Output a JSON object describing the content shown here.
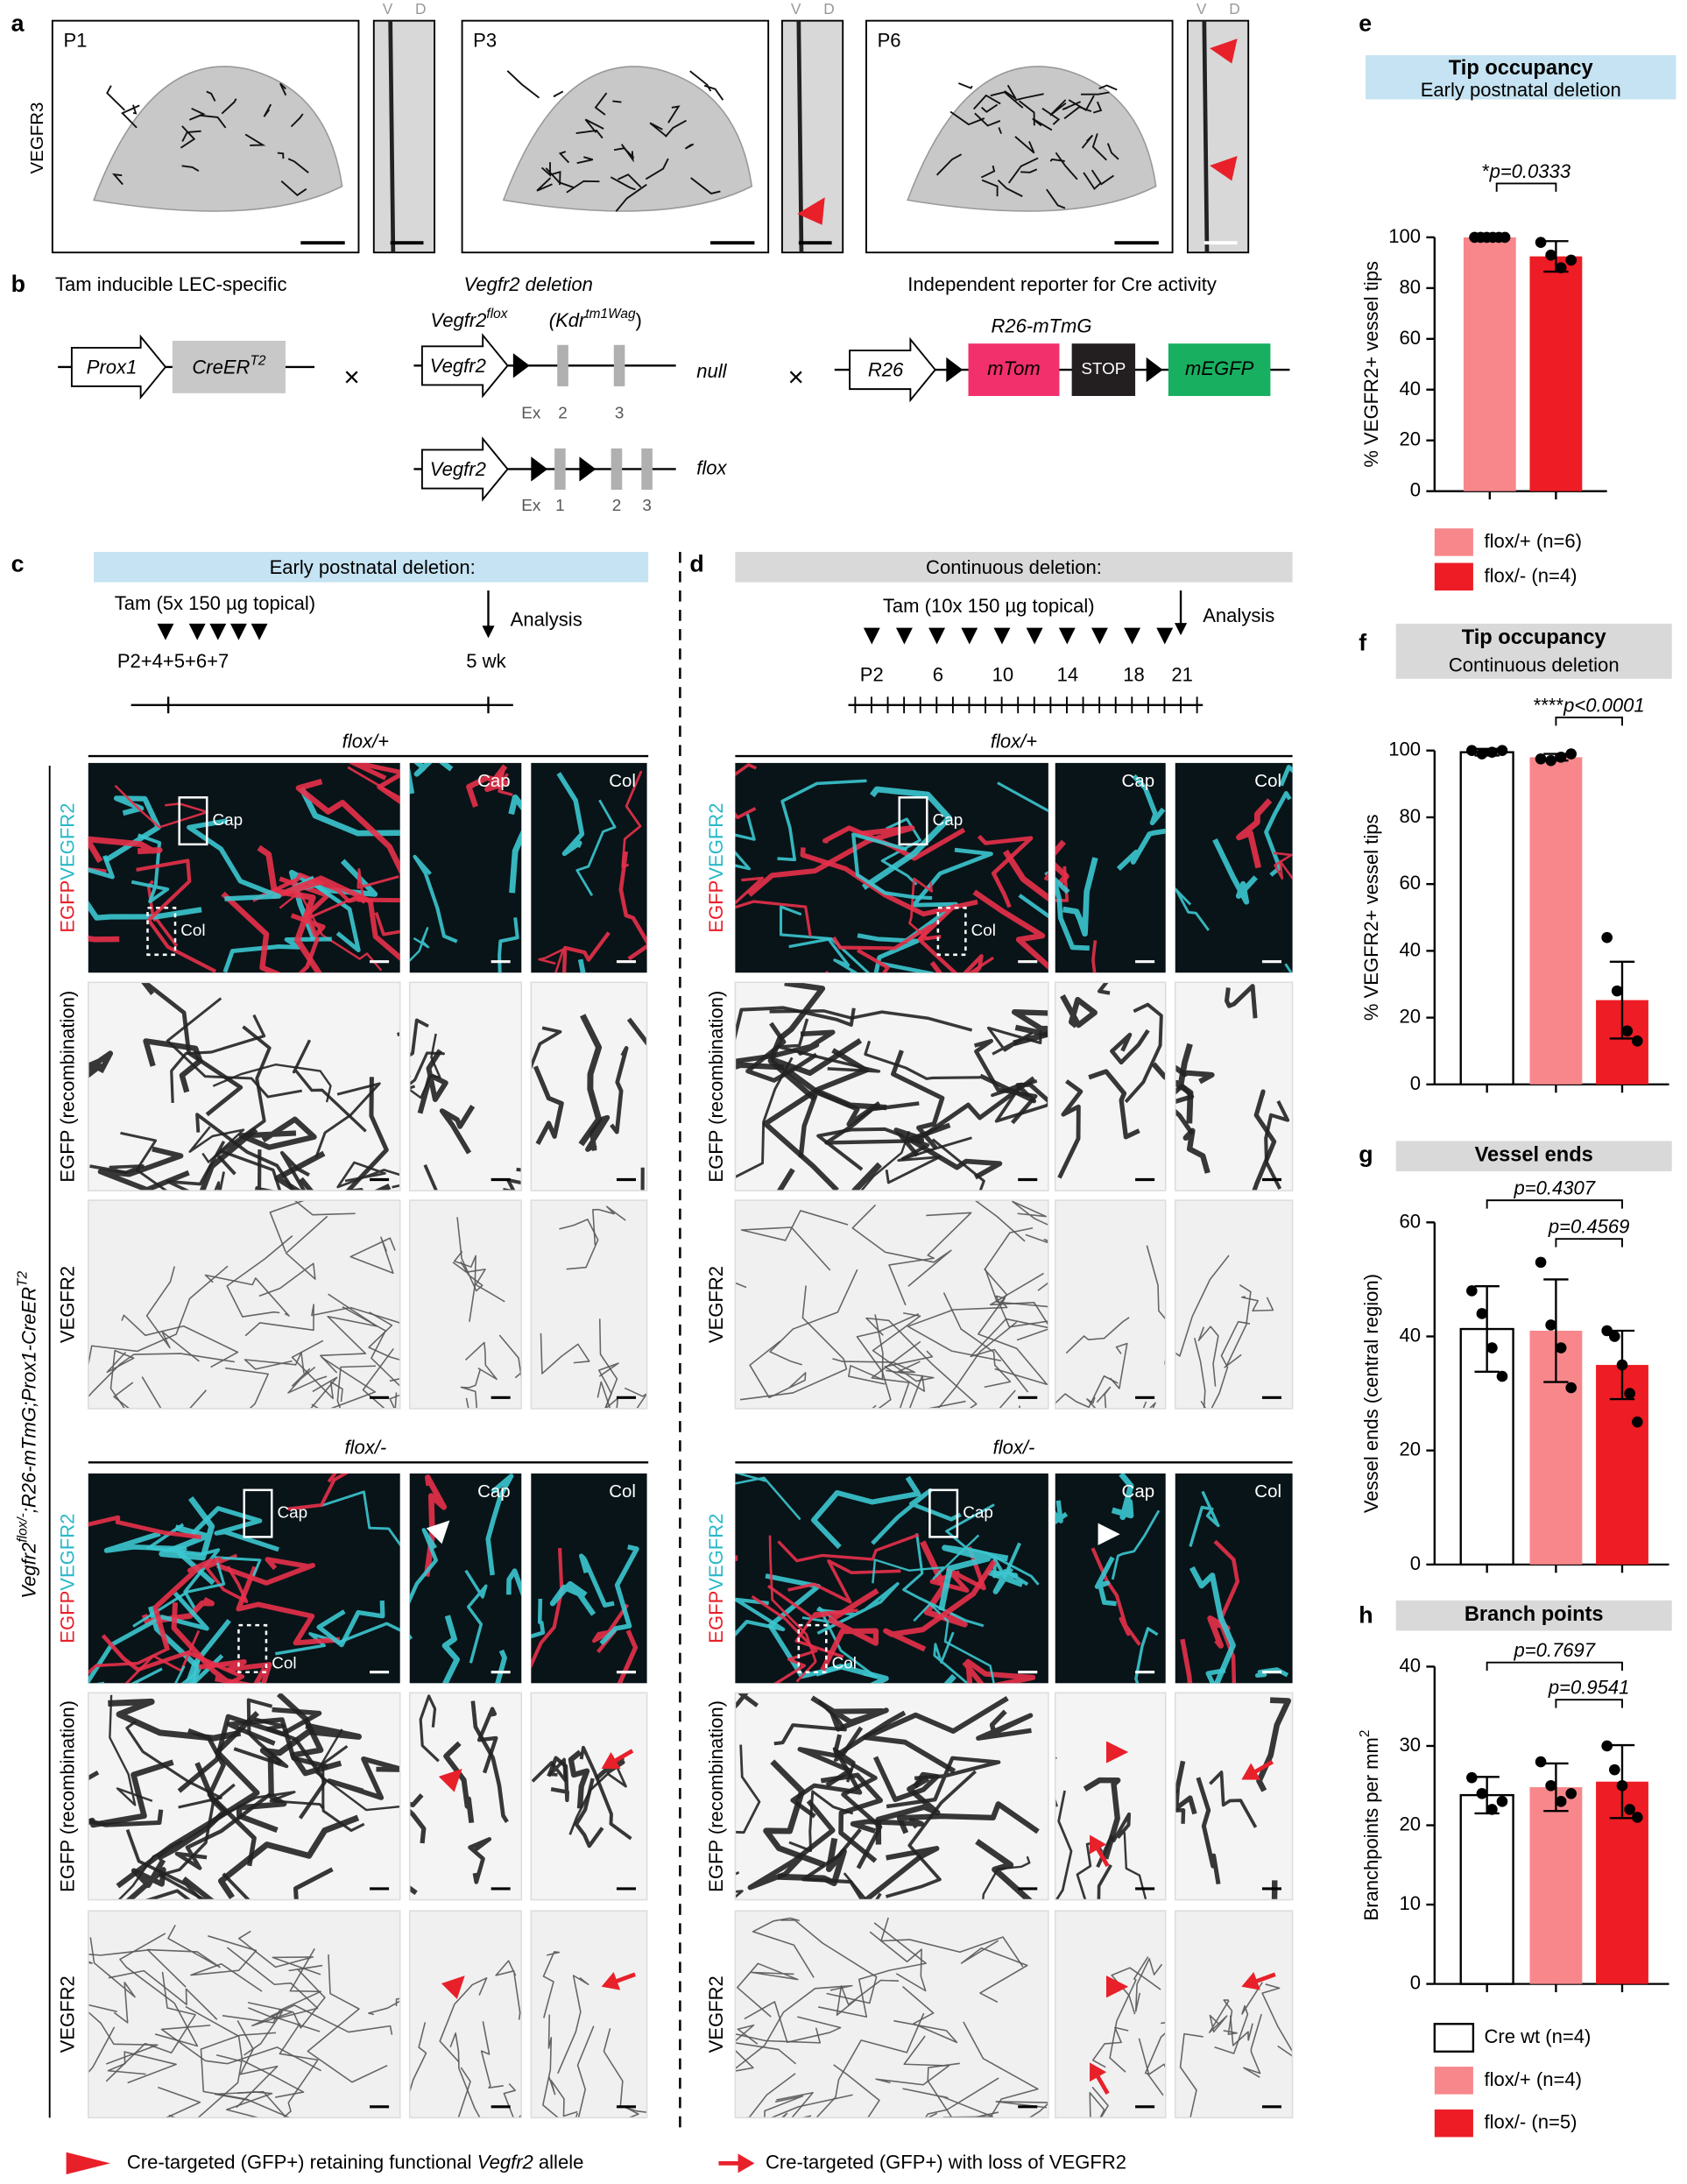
{
  "figure": {
    "panel_labels": [
      "a",
      "b",
      "c",
      "d",
      "e",
      "f",
      "g",
      "h"
    ],
    "panel_a": {
      "stain": "VEGFR3",
      "stages": [
        "P1",
        "P3",
        "P6"
      ],
      "ventral": "V",
      "dorsal": "D"
    },
    "panel_b": {
      "captions": [
        "Tam inducible LEC-specific",
        "Vegfr2 deletion",
        "Independent reporter for Cre activity"
      ],
      "prox1": "Prox1",
      "creer": "CreER",
      "creer_sup": "T2",
      "cross": "×",
      "title_gene": "Vegfr2",
      "title_sup": "flox",
      "kdr": "(Kdr",
      "kdr_sup": "tm1Wag",
      "kdr_close": ")",
      "gene": "Vegfr2",
      "exon_label": "Ex",
      "exons": [
        "1",
        "2",
        "3"
      ],
      "alleles": [
        "null",
        "flox"
      ],
      "reporter": "R26-mTmG",
      "r26": "R26",
      "mtom": "mTom",
      "stop": "STOP",
      "megfp": "mEGFP"
    },
    "panel_c": {
      "header": "Early postnatal deletion:",
      "tam": "Tam (5x 150 µg topical)",
      "analysis": "Analysis",
      "days": "P2+4+5+6+7",
      "end": "5 wk"
    },
    "panel_d": {
      "header": "Continuous deletion:",
      "tam": "Tam (10x 150 µg topical)",
      "analysis": "Analysis",
      "days": [
        "P2",
        "6",
        "10",
        "14",
        "18",
        "21"
      ]
    },
    "genotypes": [
      "flox/+",
      "flox/-"
    ],
    "channels": {
      "egfp": "EGFP",
      "vegfr2": "VEGFR2",
      "recombination": "EGFP (recombination)"
    },
    "regions": [
      "Cap",
      "Col"
    ],
    "side_label": {
      "gene": "Vegfr2",
      "sup": "flox/-",
      "rest": ";R26-mTmG;Prox1-CreER",
      "sup2": "T2"
    },
    "footer": {
      "retaining": "Cre-targeted (GFP+) retaining functional ",
      "gene": "Vegfr2",
      "allele": " allele",
      "loss": "Cre-targeted (GFP+) with loss of VEGFR2"
    }
  },
  "chart_data": [
    {
      "type": "bar",
      "title": "Tip occupancy",
      "subtitle": "Early postnatal deletion",
      "ylabel": "% VEGFR2+ vessel tips",
      "categories": [
        null
      ],
      "ylim": [
        0,
        100
      ],
      "yticks": [
        0,
        20,
        40,
        60,
        80,
        100
      ],
      "annotations": [
        "*",
        "p=0.0333"
      ],
      "series": [
        {
          "name": "flox/+ (n=6)",
          "color": "#f7878b",
          "values": [
            100
          ],
          "errors": [
            0
          ],
          "points": [
            100,
            100,
            100,
            100,
            100,
            100
          ]
        },
        {
          "name": "flox/- (n=4)",
          "color": "#ee1c24",
          "values": [
            92.5
          ],
          "errors": [
            6
          ],
          "points": [
            98,
            93,
            88,
            91
          ]
        }
      ]
    },
    {
      "type": "bar",
      "title": "Tip occupancy",
      "subtitle": "Continuous deletion",
      "ylabel": "% VEGFR2+ vessel tips",
      "categories": [
        null
      ],
      "ylim": [
        0,
        100
      ],
      "yticks": [
        0,
        20,
        40,
        60,
        80,
        100
      ],
      "annotations": [
        "****",
        "p<0.0001"
      ],
      "series": [
        {
          "color": "#ffffff",
          "values": [
            99.5
          ],
          "errors": [
            1
          ],
          "points": [
            100,
            99,
            99.5,
            100
          ]
        },
        {
          "color": "#f7878b",
          "values": [
            98
          ],
          "errors": [
            1
          ],
          "points": [
            97.5,
            97,
            98,
            99
          ]
        },
        {
          "color": "#ee1c24",
          "values": [
            25.25
          ],
          "errors": [
            11.5
          ],
          "points": [
            44,
            28,
            16,
            13
          ]
        }
      ]
    },
    {
      "type": "bar",
      "title": "Vessel ends",
      "ylabel": "Vessel ends (central region)",
      "categories": [
        null
      ],
      "ylim": [
        0,
        60
      ],
      "yticks": [
        0,
        20,
        40,
        60
      ],
      "annotations": [
        "p=0.4307",
        "p=0.4569"
      ],
      "series": [
        {
          "color": "#ffffff",
          "values": [
            41.3
          ],
          "errors": [
            7.5
          ],
          "points": [
            48,
            44,
            38,
            33
          ]
        },
        {
          "color": "#f7878b",
          "values": [
            41
          ],
          "errors": [
            9
          ],
          "points": [
            53,
            42,
            38,
            31
          ]
        },
        {
          "color": "#ee1c24",
          "values": [
            35
          ],
          "errors": [
            6
          ],
          "points": [
            41,
            40,
            35,
            30,
            25
          ]
        }
      ]
    },
    {
      "type": "bar",
      "title": "Branch points",
      "ylabel": "Branchpoints per mm",
      "ylabel_sup": "2",
      "categories": [
        null
      ],
      "ylim": [
        0,
        40
      ],
      "yticks": [
        0,
        10,
        20,
        30,
        40
      ],
      "annotations": [
        "p=0.7697",
        "p=0.9541"
      ],
      "series": [
        {
          "name": "Cre wt (n=4)",
          "color": "#ffffff",
          "values": [
            23.8
          ],
          "errors": [
            2.3
          ],
          "points": [
            26,
            24,
            22,
            23
          ]
        },
        {
          "name": "flox/+ (n=4)",
          "color": "#f7878b",
          "values": [
            24.8
          ],
          "errors": [
            3
          ],
          "points": [
            28,
            25,
            23,
            24
          ]
        },
        {
          "name": "flox/- (n=5)",
          "color": "#ee1c24",
          "values": [
            25.5
          ],
          "errors": [
            4.6
          ],
          "points": [
            30,
            27,
            25,
            22,
            21
          ]
        }
      ]
    }
  ]
}
